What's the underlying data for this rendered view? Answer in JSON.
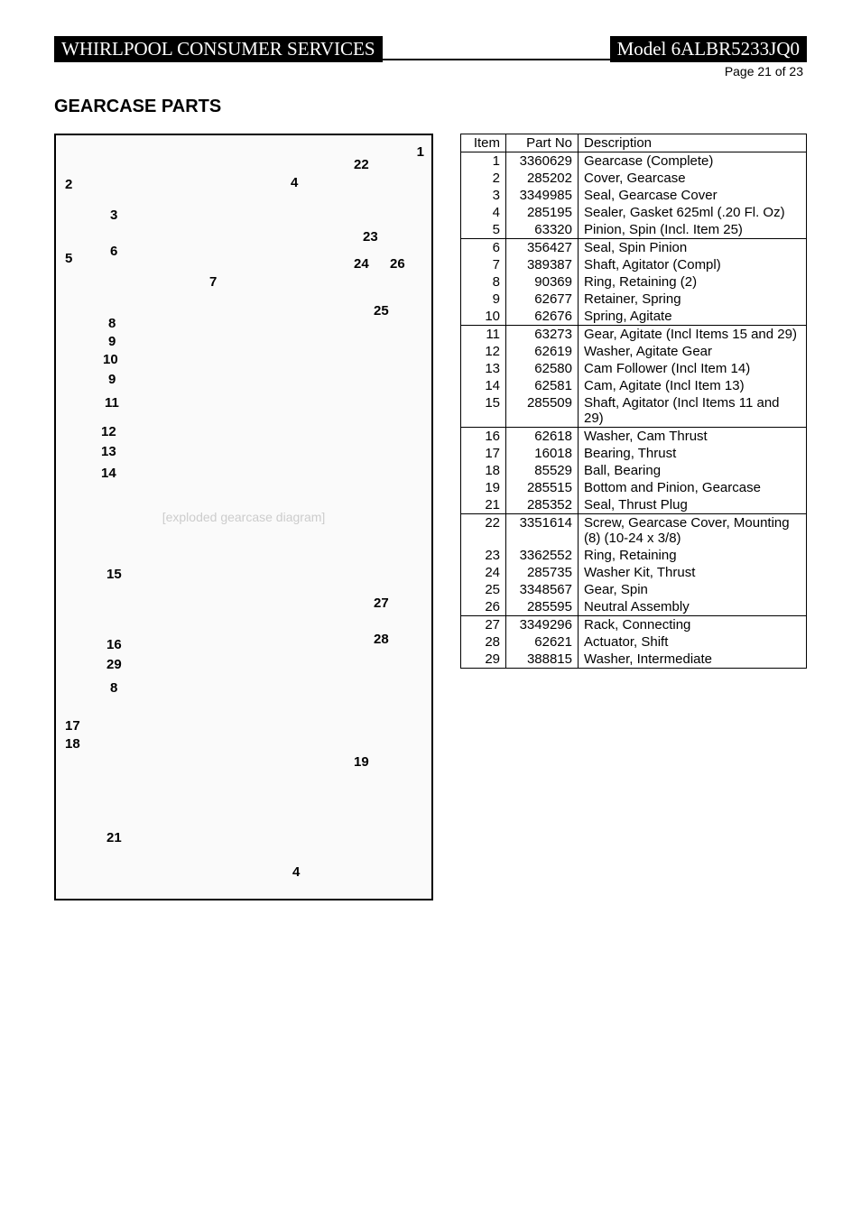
{
  "header": {
    "left": "WHIRLPOOL CONSUMER SERVICES",
    "right": "Model 6ALBR5233JQ0",
    "page_line": "Page 21 of 23"
  },
  "section_title": "GEARCASE PARTS",
  "diagram_note": "[exploded gearcase diagram]",
  "callouts_left": [
    "1",
    "2",
    "3",
    "4",
    "5",
    "6",
    "7",
    "8",
    "9",
    "10",
    "9",
    "11",
    "12",
    "13",
    "14",
    "15",
    "16",
    "29",
    "8",
    "17",
    "18",
    "21",
    "19"
  ],
  "callouts_right": [
    "22",
    "23",
    "24",
    "26",
    "25",
    "27",
    "28",
    "4"
  ],
  "table": {
    "columns": [
      "Item",
      "Part No",
      "Description"
    ],
    "groups": [
      [
        {
          "item": "1",
          "part": "3360629",
          "desc": "Gearcase (Complete)"
        },
        {
          "item": "2",
          "part": "285202",
          "desc": "Cover, Gearcase"
        },
        {
          "item": "3",
          "part": "3349985",
          "desc": "Seal, Gearcase Cover"
        },
        {
          "item": "4",
          "part": "285195",
          "desc": "Sealer, Gasket 625ml (.20 Fl. Oz)"
        },
        {
          "item": "5",
          "part": "63320",
          "desc": "Pinion, Spin (Incl. Item 25)"
        }
      ],
      [
        {
          "item": "6",
          "part": "356427",
          "desc": "Seal, Spin Pinion"
        },
        {
          "item": "7",
          "part": "389387",
          "desc": "Shaft, Agitator (Compl)"
        },
        {
          "item": "8",
          "part": "90369",
          "desc": "Ring, Retaining (2)"
        },
        {
          "item": "9",
          "part": "62677",
          "desc": "Retainer, Spring"
        },
        {
          "item": "10",
          "part": "62676",
          "desc": "Spring, Agitate"
        }
      ],
      [
        {
          "item": "11",
          "part": "63273",
          "desc": "Gear, Agitate (Incl Items 15 and 29)"
        },
        {
          "item": "12",
          "part": "62619",
          "desc": "Washer, Agitate Gear"
        },
        {
          "item": "13",
          "part": "62580",
          "desc": "Cam Follower (Incl Item 14)"
        },
        {
          "item": "14",
          "part": "62581",
          "desc": "Cam, Agitate (Incl Item 13)"
        },
        {
          "item": "15",
          "part": "285509",
          "desc": "Shaft, Agitator (Incl Items 11 and 29)"
        }
      ],
      [
        {
          "item": "16",
          "part": "62618",
          "desc": "Washer, Cam Thrust"
        },
        {
          "item": "17",
          "part": "16018",
          "desc": "Bearing, Thrust"
        },
        {
          "item": "18",
          "part": "85529",
          "desc": "Ball, Bearing"
        },
        {
          "item": "19",
          "part": "285515",
          "desc": "Bottom and Pinion, Gearcase"
        },
        {
          "item": "21",
          "part": "285352",
          "desc": "Seal, Thrust Plug"
        }
      ],
      [
        {
          "item": "22",
          "part": "3351614",
          "desc": "Screw, Gearcase Cover, Mounting (8) (10-24 x 3/8)"
        },
        {
          "item": "23",
          "part": "3362552",
          "desc": "Ring, Retaining"
        },
        {
          "item": "24",
          "part": "285735",
          "desc": "Washer Kit, Thrust"
        },
        {
          "item": "25",
          "part": "3348567",
          "desc": "Gear, Spin"
        },
        {
          "item": "26",
          "part": "285595",
          "desc": "Neutral Assembly"
        }
      ],
      [
        {
          "item": "27",
          "part": "3349296",
          "desc": "Rack, Connecting"
        },
        {
          "item": "28",
          "part": "62621",
          "desc": "Actuator, Shift"
        },
        {
          "item": "29",
          "part": "388815",
          "desc": "Washer, Intermediate"
        }
      ]
    ]
  }
}
